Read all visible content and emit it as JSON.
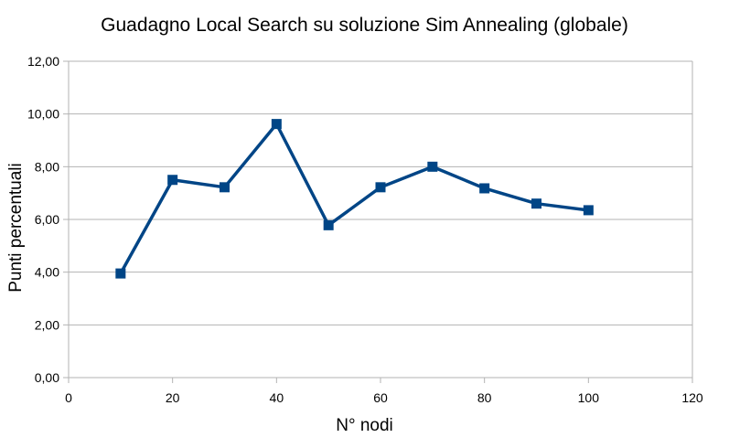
{
  "chart_data": {
    "type": "scatter",
    "title": "Guadagno Local Search su soluzione Sim Annealing (globale)",
    "xlabel": "N° nodi",
    "ylabel": "Punti percentuali",
    "xlim": [
      0,
      120
    ],
    "ylim": [
      0,
      12
    ],
    "x_ticks": [
      "0",
      "20",
      "40",
      "60",
      "80",
      "100",
      "120"
    ],
    "y_ticks": [
      "0,00",
      "2,00",
      "4,00",
      "6,00",
      "8,00",
      "10,00",
      "12,00"
    ],
    "grid": true,
    "legend": "none",
    "series": [
      {
        "color": "#004586",
        "marker": "square",
        "line": true,
        "x": [
          10,
          20,
          30,
          40,
          50,
          60,
          70,
          80,
          90,
          100
        ],
        "y": [
          3.95,
          7.5,
          7.22,
          9.62,
          5.78,
          7.22,
          8.0,
          7.18,
          6.6,
          6.35
        ]
      }
    ]
  }
}
